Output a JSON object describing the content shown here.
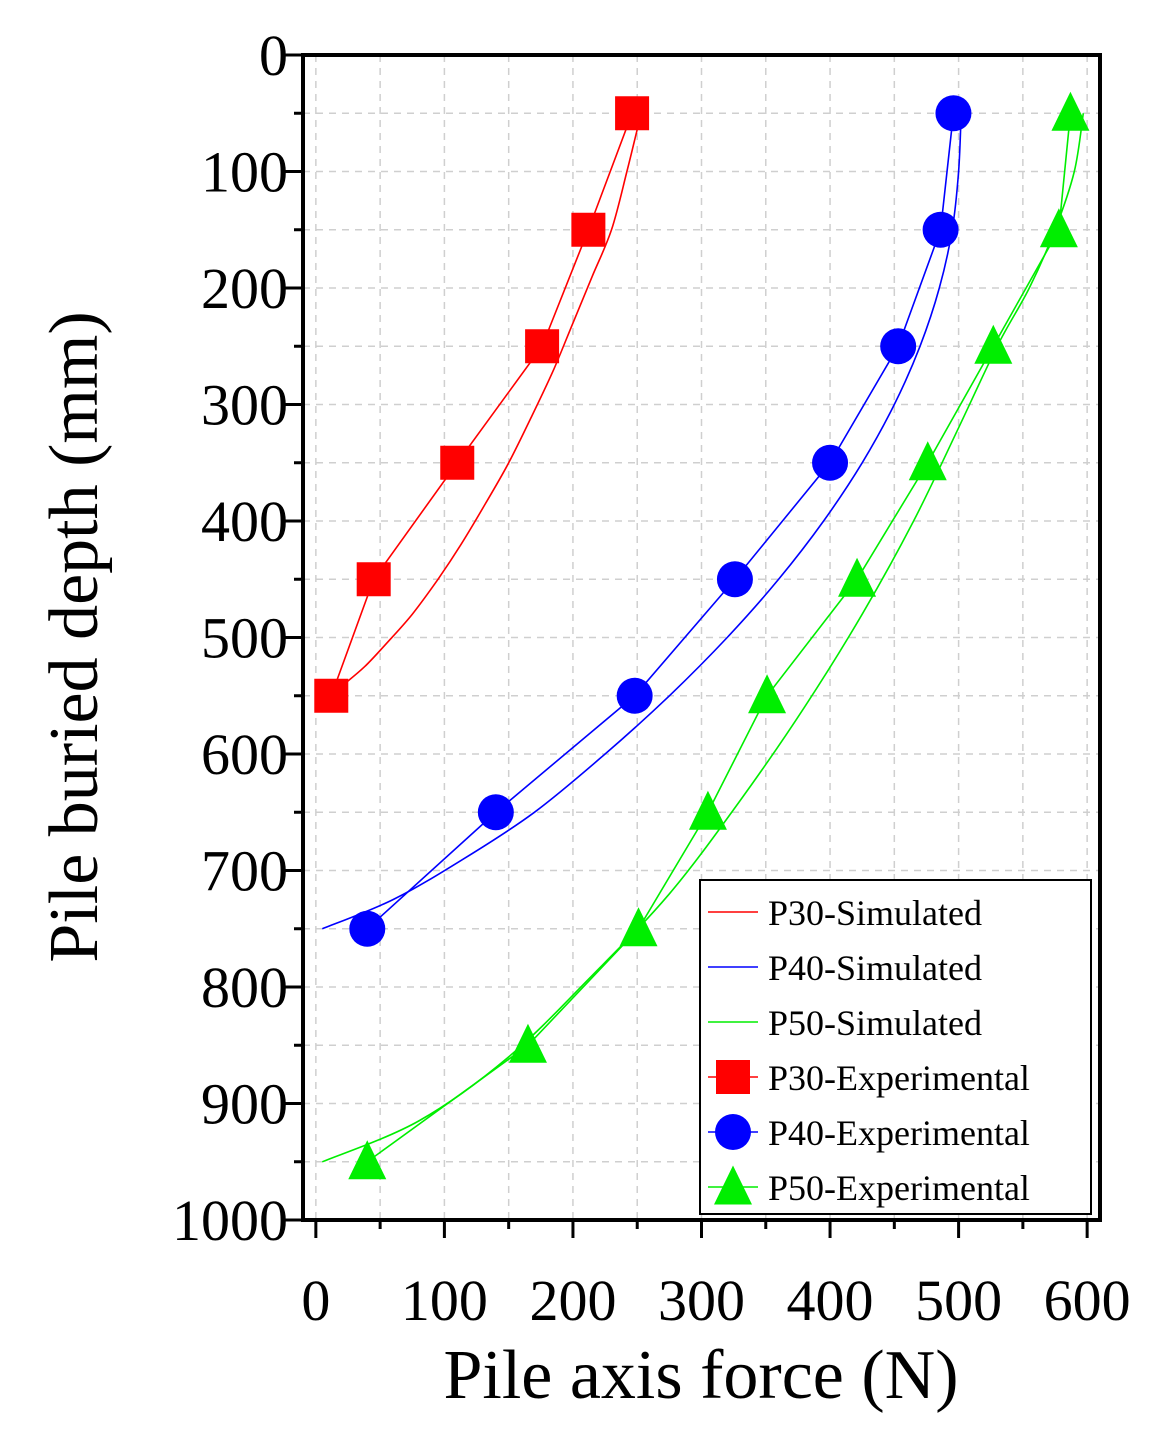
{
  "chart_data": {
    "type": "line",
    "title": "",
    "xlabel": "Pile axis force (N)",
    "ylabel": "Pile buried depth (mm)",
    "xlim": [
      -10,
      610
    ],
    "ylim": [
      0,
      1000
    ],
    "y_inverted": true,
    "x_ticks": [
      0,
      100,
      200,
      300,
      400,
      500,
      600
    ],
    "x_tick_labels": [
      "0",
      "100",
      "200",
      "300",
      "400",
      "500",
      "600"
    ],
    "y_ticks": [
      0,
      100,
      200,
      300,
      400,
      500,
      600,
      700,
      800,
      900,
      1000
    ],
    "y_tick_labels": [
      "0",
      "100",
      "200",
      "300",
      "400",
      "500",
      "600",
      "700",
      "800",
      "900",
      "1000"
    ],
    "grid": true,
    "legend_position": "bottom-right",
    "series": [
      {
        "name": "P30-Simulated",
        "kind": "line",
        "color": "#ff0000",
        "x": [
          253,
          242,
          230,
          215,
          200,
          185,
          168,
          150,
          132,
          113,
          95,
          75,
          55,
          38,
          22,
          10
        ],
        "y": [
          50,
          100,
          150,
          190,
          230,
          270,
          310,
          350,
          385,
          420,
          450,
          480,
          505,
          525,
          540,
          550
        ]
      },
      {
        "name": "P40-Simulated",
        "kind": "line",
        "color": "#0000ff",
        "x": [
          502,
          500,
          495,
          485,
          470,
          450,
          425,
          395,
          360,
          320,
          275,
          225,
          170,
          115,
          60,
          5
        ],
        "y": [
          50,
          100,
          150,
          200,
          250,
          300,
          350,
          400,
          450,
          500,
          550,
          600,
          650,
          690,
          725,
          750
        ]
      },
      {
        "name": "P50-Simulated",
        "kind": "line",
        "color": "#00ee00",
        "x": [
          597,
          590,
          575,
          555,
          530,
          500,
          465,
          425,
          380,
          330,
          275,
          215,
          150,
          80,
          5
        ],
        "y": [
          50,
          100,
          150,
          200,
          250,
          320,
          400,
          480,
          560,
          640,
          720,
          790,
          860,
          915,
          950
        ]
      },
      {
        "name": "P30-Experimental",
        "kind": "marker",
        "marker": "square",
        "color": "#ff0000",
        "x": [
          246,
          212,
          176,
          110,
          45,
          12
        ],
        "y": [
          50,
          150,
          250,
          350,
          450,
          550
        ]
      },
      {
        "name": "P40-Experimental",
        "kind": "marker",
        "marker": "circle",
        "color": "#0000ff",
        "x": [
          496,
          486,
          453,
          400,
          326,
          248,
          140,
          40
        ],
        "y": [
          50,
          150,
          250,
          350,
          450,
          550,
          650,
          750
        ]
      },
      {
        "name": "P50-Experimental",
        "kind": "marker",
        "marker": "triangle",
        "color": "#00ee00",
        "x": [
          587,
          578,
          527,
          476,
          421,
          351,
          305,
          251,
          165,
          40
        ],
        "y": [
          50,
          150,
          250,
          350,
          450,
          550,
          650,
          750,
          850,
          950
        ]
      }
    ]
  }
}
